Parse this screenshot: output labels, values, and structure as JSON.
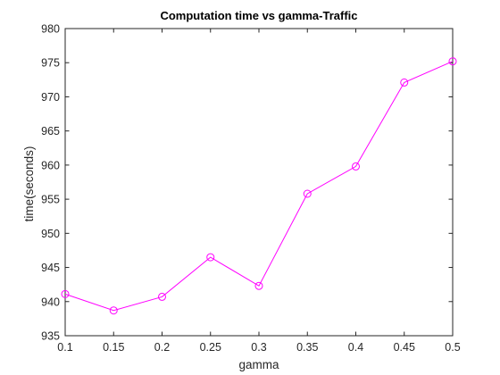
{
  "chart_data": {
    "type": "line",
    "title": "Computation time vs gamma-Traffic",
    "xlabel": "gamma",
    "ylabel": "time(seconds)",
    "xlim": [
      0.1,
      0.5
    ],
    "ylim": [
      935,
      980
    ],
    "xticks": [
      "0.1",
      "0.15",
      "0.2",
      "0.25",
      "0.3",
      "0.35",
      "0.4",
      "0.45",
      "0.5"
    ],
    "yticks": [
      "935",
      "940",
      "945",
      "950",
      "955",
      "960",
      "965",
      "970",
      "975",
      "980"
    ],
    "grid": false,
    "legend": "none",
    "series": [
      {
        "color": "#ff00ff",
        "marker": "circle",
        "x": [
          0.1,
          0.15,
          0.2,
          0.25,
          0.3,
          0.35,
          0.4,
          0.45,
          0.5
        ],
        "y": [
          941.1,
          938.7,
          940.7,
          946.5,
          942.3,
          955.8,
          959.8,
          972.1,
          975.2
        ]
      }
    ]
  }
}
